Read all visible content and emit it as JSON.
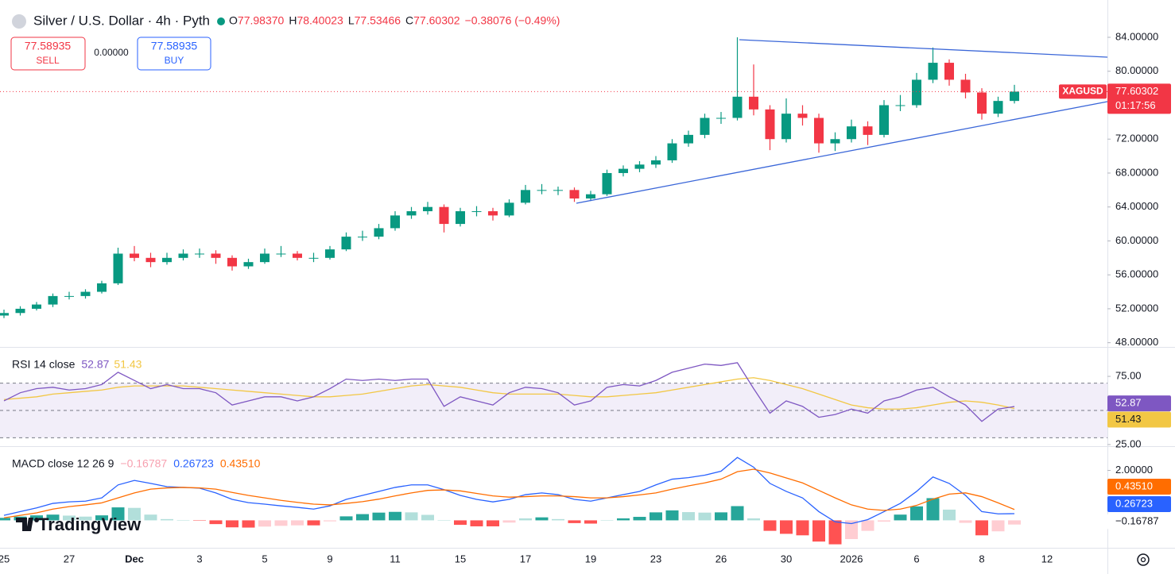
{
  "header": {
    "title": "Silver / U.S. Dollar · 4h · Pyth",
    "ohlc": [
      {
        "key": "O",
        "value": "77.98370"
      },
      {
        "key": "H",
        "value": "78.40023"
      },
      {
        "key": "L",
        "value": "77.53466"
      },
      {
        "key": "C",
        "value": "77.60302"
      }
    ],
    "change": "−0.38076 (−0.49%)",
    "sell": {
      "price": "77.58935",
      "label": "SELL"
    },
    "spread": "0.00000",
    "buy": {
      "price": "77.58935",
      "label": "BUY"
    }
  },
  "watermark": "TradingView",
  "chart_data": [
    {
      "type": "candlestick",
      "categories": [
        "25",
        null,
        null,
        null,
        "27",
        null,
        null,
        null,
        "Dec",
        null,
        null,
        null,
        "3",
        null,
        null,
        null,
        "5",
        null,
        null,
        null,
        "9",
        null,
        null,
        null,
        "11",
        null,
        null,
        null,
        "15",
        null,
        null,
        null,
        "17",
        null,
        null,
        null,
        "19",
        null,
        null,
        null,
        "23",
        null,
        null,
        null,
        "26",
        null,
        null,
        null,
        "30",
        null,
        null,
        null,
        "2026",
        null,
        null,
        null,
        "6",
        null,
        null,
        null,
        "8",
        null,
        null,
        null,
        "12"
      ],
      "values": [
        [
          51.2,
          51.9,
          50.9,
          51.5
        ],
        [
          51.5,
          52.3,
          51.2,
          52
        ],
        [
          52,
          52.8,
          51.8,
          52.5
        ],
        [
          52.5,
          53.8,
          52.2,
          53.5
        ],
        [
          53.5,
          54,
          53.1,
          53.5
        ],
        [
          53.5,
          54.3,
          53.2,
          54
        ],
        [
          54,
          55.3,
          53.8,
          55
        ],
        [
          55,
          59.2,
          54.8,
          58.5
        ],
        [
          58.5,
          59.4,
          57.6,
          58
        ],
        [
          58,
          58.6,
          56.9,
          57.5
        ],
        [
          57.5,
          58.6,
          57.2,
          58
        ],
        [
          58,
          59,
          57.7,
          58.5
        ],
        [
          58.5,
          59.1,
          58,
          58.5
        ],
        [
          58.5,
          58.9,
          57.3,
          58
        ],
        [
          58,
          58.3,
          56.5,
          57
        ],
        [
          57,
          57.9,
          56.7,
          57.5
        ],
        [
          57.5,
          59.1,
          57.3,
          58.5
        ],
        [
          58.5,
          59.4,
          58.1,
          58.5
        ],
        [
          58.5,
          58.8,
          57.7,
          58
        ],
        [
          58,
          58.6,
          57.5,
          58
        ],
        [
          58,
          59.4,
          57.8,
          59
        ],
        [
          59,
          61,
          58.8,
          60.5
        ],
        [
          60.5,
          61.2,
          60,
          60.5
        ],
        [
          60.5,
          62,
          60.2,
          61.5
        ],
        [
          61.5,
          63.5,
          61.2,
          63
        ],
        [
          63,
          64,
          62.6,
          63.5
        ],
        [
          63.5,
          64.6,
          63.1,
          64
        ],
        [
          64,
          64.3,
          61,
          62
        ],
        [
          62,
          63.9,
          61.7,
          63.5
        ],
        [
          63.5,
          64.1,
          62.9,
          63.5
        ],
        [
          63.5,
          63.9,
          62.4,
          63
        ],
        [
          63,
          64.9,
          62.8,
          64.5
        ],
        [
          64.5,
          66.6,
          64.3,
          66
        ],
        [
          66,
          66.7,
          65.5,
          66
        ],
        [
          66,
          66.4,
          65.4,
          66
        ],
        [
          66,
          66.3,
          64.6,
          65
        ],
        [
          65,
          65.9,
          64.7,
          65.5
        ],
        [
          65.5,
          68.4,
          65.3,
          68
        ],
        [
          68,
          68.9,
          67.6,
          68.5
        ],
        [
          68.5,
          69.4,
          68.1,
          69
        ],
        [
          69,
          70,
          68.6,
          69.5
        ],
        [
          69.5,
          72,
          69.2,
          71.5
        ],
        [
          71.5,
          73,
          71.1,
          72.5
        ],
        [
          72.5,
          75,
          72.1,
          74.5
        ],
        [
          74.5,
          75.2,
          73.8,
          74.5
        ],
        [
          74.5,
          84,
          74.2,
          77
        ],
        [
          77,
          80.8,
          74.8,
          75.5
        ],
        [
          75.5,
          76,
          70.7,
          72
        ],
        [
          72,
          76.8,
          71.6,
          75
        ],
        [
          75,
          76,
          73.6,
          74.5
        ],
        [
          74.5,
          75,
          70.4,
          71.5
        ],
        [
          71.5,
          72.8,
          70.6,
          72
        ],
        [
          72,
          74.3,
          71.6,
          73.5
        ],
        [
          73.5,
          74.1,
          71.3,
          72.5
        ],
        [
          72.5,
          76.6,
          72.2,
          76
        ],
        [
          76,
          77.2,
          75.3,
          76
        ],
        [
          76,
          79.8,
          75.7,
          79
        ],
        [
          79,
          82.8,
          78.6,
          81
        ],
        [
          81,
          81.4,
          78.3,
          79
        ],
        [
          79,
          79.7,
          76.8,
          77.5
        ],
        [
          77.5,
          78,
          74.3,
          75
        ],
        [
          75,
          77,
          74.6,
          76.5
        ],
        [
          76.5,
          78.4,
          76.2,
          77.6
        ],
        null,
        null
      ],
      "up_color": "#089981",
      "down_color": "#f23645",
      "ylim": [
        47.5,
        88.4
      ],
      "yticks": [
        {
          "value": 48,
          "label": "48.00000"
        },
        {
          "value": 52,
          "label": "52.00000"
        },
        {
          "value": 56,
          "label": "56.00000"
        },
        {
          "value": 60,
          "label": "60.00000"
        },
        {
          "value": 64,
          "label": "64.00000"
        },
        {
          "value": 68,
          "label": "68.00000"
        },
        {
          "value": 72,
          "label": "72.00000"
        },
        {
          "value": 76,
          "label": "76.00000"
        },
        {
          "value": 80,
          "label": "80.00000"
        },
        {
          "value": 84,
          "label": "84.00000"
        }
      ],
      "current_price": 77.60302,
      "symbol": "XAGUSD",
      "countdown": "01:17:56",
      "grid": false
    },
    {
      "type": "line",
      "title": "RSI 14 close",
      "series": [
        {
          "color": "#7e57c2",
          "values": [
            57,
            63,
            66,
            67,
            65,
            66,
            69,
            78,
            72,
            66,
            69,
            66,
            66,
            63,
            54,
            57,
            60,
            60,
            57,
            60,
            66,
            73,
            72,
            73,
            72,
            73,
            73,
            53,
            60,
            57,
            54,
            63,
            67,
            66,
            63,
            54,
            57,
            67,
            69,
            68,
            72,
            78,
            81,
            84,
            83,
            85,
            66,
            48,
            57,
            53,
            45,
            47,
            51,
            48,
            57,
            60,
            65,
            67,
            60,
            54,
            42,
            51,
            52.87,
            null,
            null
          ]
        },
        {
          "color": "#f2c744",
          "values": [
            58,
            59,
            60,
            62,
            63,
            64,
            65,
            67,
            68,
            68,
            68,
            68,
            67,
            66,
            65,
            64,
            63,
            62,
            61,
            60,
            60,
            61,
            62,
            64,
            66,
            68,
            69,
            68,
            67,
            65,
            63,
            62,
            62,
            62,
            62,
            61,
            60,
            60,
            61,
            62,
            63,
            65,
            67,
            69,
            71,
            73,
            74,
            72,
            69,
            66,
            62,
            58,
            54,
            52,
            51,
            51,
            52,
            54,
            56,
            57,
            56,
            54,
            51.43,
            null,
            null
          ]
        }
      ],
      "bands": [
        70,
        50,
        30
      ],
      "band_color": "#7e57c2",
      "ylim": [
        23.8,
        96
      ],
      "yticks": [
        {
          "value": 75,
          "label": "75.00"
        },
        {
          "value": 25,
          "label": "25.00"
        }
      ]
    },
    {
      "type": "macd",
      "title": "MACD close 12 26 9",
      "series": [
        {
          "type": "histogram",
          "colors": [
            "#26a69a",
            "#b2dfdb",
            "#ff5252",
            "#ffcdd2"
          ],
          "values": [
            0.1,
            0.15,
            0.2,
            0.23,
            0.19,
            0.15,
            0.2,
            0.52,
            0.5,
            0.23,
            0.05,
            0,
            -0.01,
            -0.15,
            -0.28,
            -0.29,
            -0.25,
            -0.22,
            -0.2,
            -0.2,
            -0.04,
            0.16,
            0.25,
            0.31,
            0.34,
            0.32,
            0.22,
            0.01,
            -0.18,
            -0.24,
            -0.24,
            -0.09,
            0.08,
            0.12,
            0.05,
            -0.11,
            -0.13,
            0,
            0.08,
            0.14,
            0.32,
            0.4,
            0.33,
            0.31,
            0.32,
            0.57,
            0.08,
            -0.42,
            -0.54,
            -0.6,
            -0.85,
            -0.96,
            -0.75,
            -0.42,
            -0.05,
            0.23,
            0.56,
            0.89,
            0.43,
            -0.1,
            -0.6,
            -0.44,
            -0.16787,
            null,
            null
          ],
          "value_label": "−0.16787",
          "color": "#f7a1b0"
        },
        {
          "type": "line",
          "color": "#2962ff",
          "values": [
            0.2,
            0.35,
            0.5,
            0.68,
            0.74,
            0.77,
            0.9,
            1.42,
            1.6,
            1.48,
            1.35,
            1.32,
            1.29,
            1.1,
            0.84,
            0.71,
            0.65,
            0.58,
            0.52,
            0.45,
            0.58,
            0.84,
            1.0,
            1.16,
            1.32,
            1.42,
            1.42,
            1.23,
            1.0,
            0.84,
            0.74,
            0.84,
            1.03,
            1.1,
            1.03,
            0.84,
            0.77,
            0.9,
            1.03,
            1.16,
            1.42,
            1.65,
            1.71,
            1.81,
            1.97,
            2.52,
            2.13,
            1.48,
            1.16,
            0.9,
            0.35,
            -0.06,
            -0.13,
            0.03,
            0.35,
            0.68,
            1.16,
            1.74,
            1.48,
            1.0,
            0.35,
            0.26,
            0.26723,
            null,
            null
          ],
          "value_label": "0.26723"
        },
        {
          "type": "line",
          "color": "#ff6d00",
          "values": [
            0.1,
            0.2,
            0.3,
            0.45,
            0.55,
            0.62,
            0.7,
            0.9,
            1.1,
            1.25,
            1.3,
            1.32,
            1.3,
            1.25,
            1.12,
            1.0,
            0.9,
            0.8,
            0.72,
            0.65,
            0.62,
            0.68,
            0.75,
            0.85,
            0.98,
            1.1,
            1.2,
            1.22,
            1.18,
            1.08,
            0.98,
            0.93,
            0.95,
            0.98,
            0.98,
            0.95,
            0.9,
            0.9,
            0.95,
            1.02,
            1.1,
            1.25,
            1.38,
            1.5,
            1.65,
            1.95,
            2.05,
            1.9,
            1.7,
            1.5,
            1.2,
            0.9,
            0.62,
            0.45,
            0.4,
            0.45,
            0.6,
            0.85,
            1.05,
            1.1,
            0.95,
            0.7,
            0.4351,
            null,
            null
          ],
          "value_label": "0.43510"
        }
      ],
      "ylim": [
        -1.1,
        2.94
      ],
      "yticks": [
        {
          "value": 2,
          "label": "2.00000"
        }
      ]
    }
  ]
}
